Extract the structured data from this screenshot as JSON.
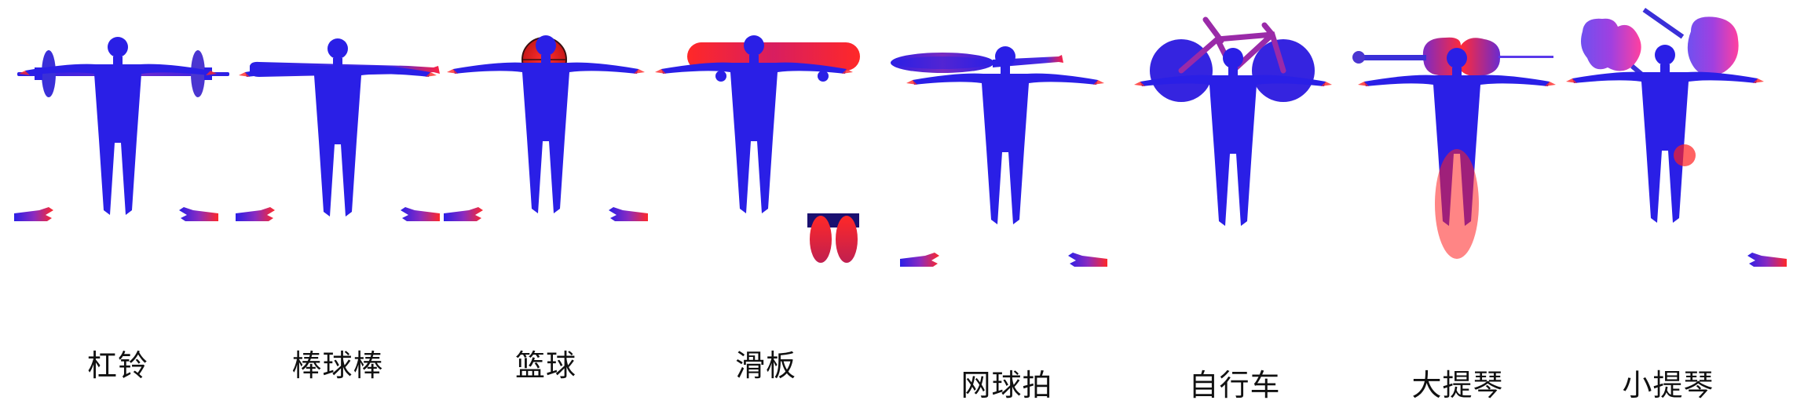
{
  "panels": [
    {
      "label": "杠铃",
      "object": "barbell",
      "contact": "hands-and-feet"
    },
    {
      "label": "棒球棒",
      "object": "baseball-bat",
      "contact": "hands"
    },
    {
      "label": "篮球",
      "object": "basketball",
      "contact": "hands-and-torso"
    },
    {
      "label": "滑板",
      "object": "skateboard",
      "contact": "feet"
    },
    {
      "label": "网球拍",
      "object": "tennis-racket",
      "contact": "hands"
    },
    {
      "label": "自行车",
      "object": "bicycle",
      "contact": "legs-and-hands"
    },
    {
      "label": "大提琴",
      "object": "cello",
      "contact": "torso-and-legs"
    },
    {
      "label": "小提琴",
      "object": "violin",
      "contact": "shoulder-and-hand"
    }
  ],
  "colors": {
    "body": "#2a1fe6",
    "contact": "#ff2020",
    "background": "#ffffff"
  }
}
